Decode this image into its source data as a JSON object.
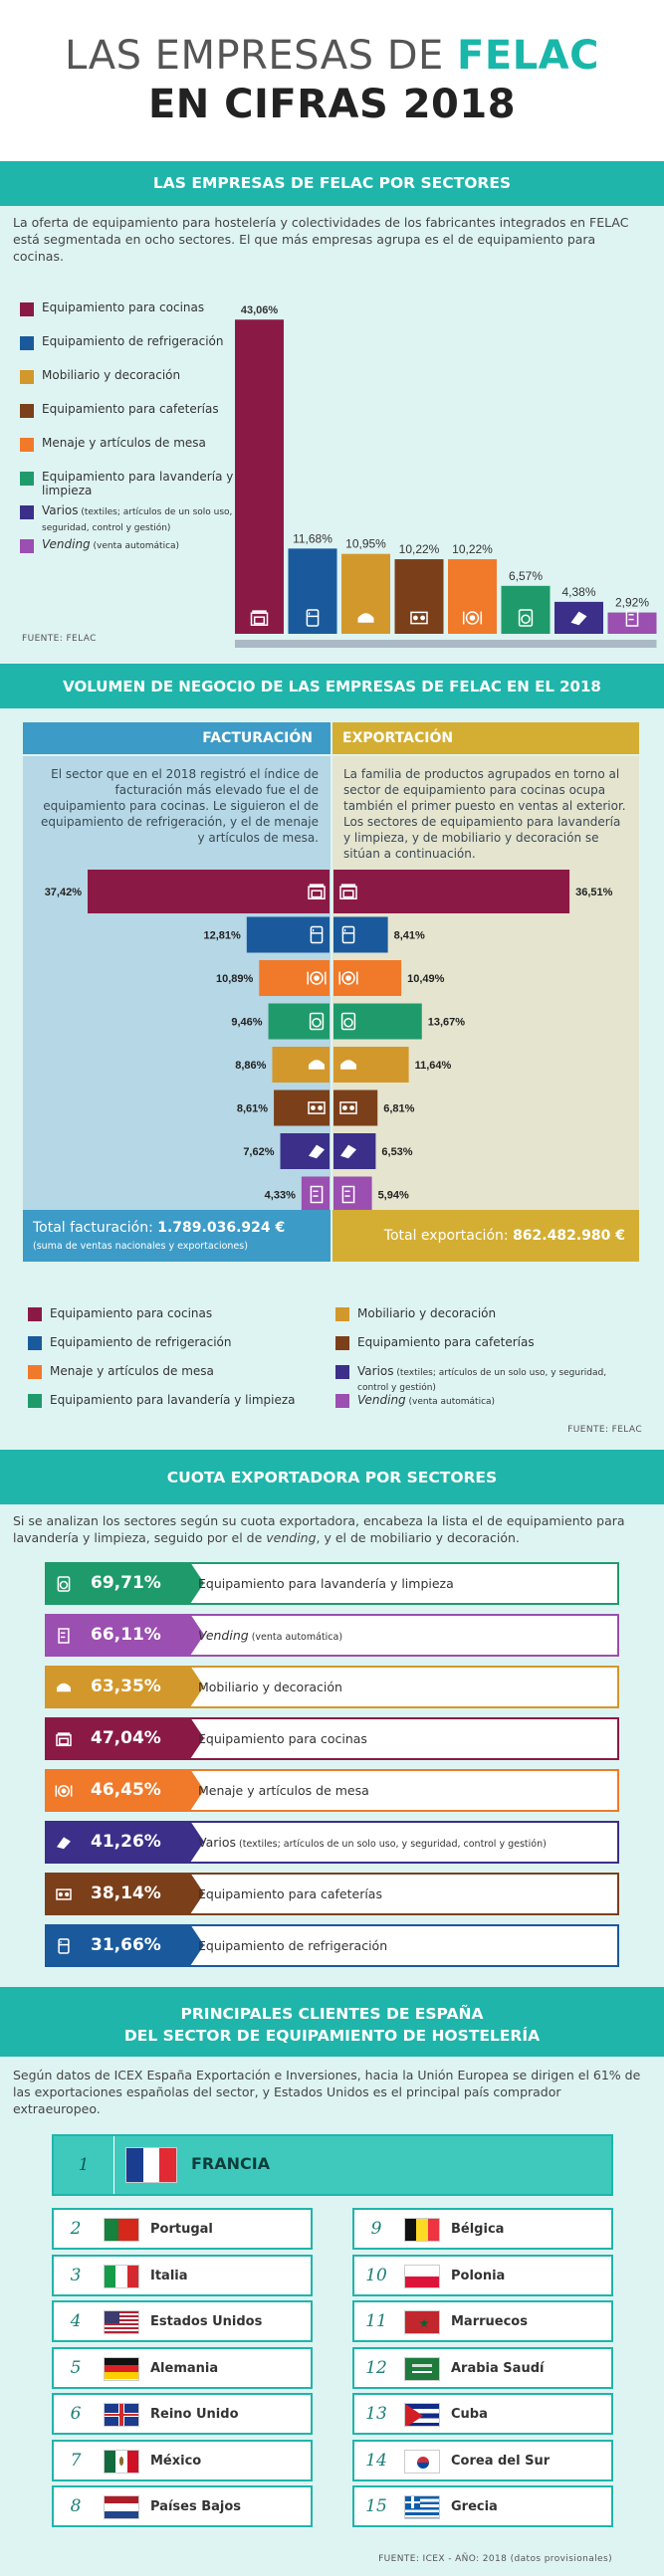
{
  "header": {
    "title_part1": "LAS EMPRESAS DE ",
    "title_brand": "FELAC",
    "title_line2": "EN CIFRAS 2018"
  },
  "section1": {
    "band_title": "LAS EMPRESAS DE FELAC POR SECTORES",
    "intro": "La oferta de equipamiento para hostelería y colectividades de los fabricantes integrados en FELAC está segmentada en ocho sectores. El que más empresas agrupa es el de equipamiento para cocinas.",
    "legend": [
      {
        "label": "Equipamiento para cocinas",
        "small": "",
        "color": "#8a1a45"
      },
      {
        "label": "Equipamiento de refrigeración",
        "small": "",
        "color": "#1a5a9c"
      },
      {
        "label": "Mobiliario y decoración",
        "small": "",
        "color": "#d3982b"
      },
      {
        "label": "Equipamiento para cafeterías",
        "small": "",
        "color": "#7b3f1a"
      },
      {
        "label": "Menaje y artículos de mesa",
        "small": "",
        "color": "#f07a2a"
      },
      {
        "label": "Equipamiento para lavandería y limpieza",
        "small": "",
        "color": "#1f9b6b"
      },
      {
        "label": "Varios",
        "small": " (textiles; artículos de un solo uso, y seguridad, control y gestión)",
        "color": "#3b2f8a"
      },
      {
        "label": "Vending",
        "small": " (venta automática)",
        "color": "#9b4fb0"
      }
    ],
    "source": "FUENTE: FELAC",
    "chart_data": {
      "type": "bar",
      "categories": [
        "Equipamiento para cocinas",
        "Equipamiento de refrigeración",
        "Mobiliario y decoración",
        "Equipamiento para cafeterías",
        "Menaje y artículos de mesa",
        "Equipamiento para lavandería y limpieza",
        "Varios",
        "Vending"
      ],
      "values": [
        43.06,
        11.68,
        10.95,
        10.22,
        10.22,
        6.57,
        4.38,
        2.92
      ],
      "labels": [
        "43,06%",
        "11,68%",
        "10,95%",
        "10,22%",
        "10,22%",
        "6,57%",
        "4,38%",
        "2,92%"
      ],
      "colors": [
        "#8a1a45",
        "#1a5a9c",
        "#d3982b",
        "#7b3f1a",
        "#f07a2a",
        "#1f9b6b",
        "#3b2f8a",
        "#9b4fb0"
      ],
      "icons": [
        "oven-icon",
        "fridge-icon",
        "furniture-icon",
        "coffee-machine-icon",
        "tableware-icon",
        "washing-machine-icon",
        "textiles-icon",
        "vending-icon"
      ],
      "ylim": [
        0,
        45
      ]
    }
  },
  "section2": {
    "band_title": "VOLUMEN DE NEGOCIO DE LAS EMPRESAS DE FELAC EN EL 2018",
    "col_left": "FACTURACIÓN",
    "col_right": "EXPORTACIÓN",
    "text_left": "El sector que en el 2018 registró el índice de facturación más elevado fue el de equipamiento para cocinas. Le siguieron el de equipamiento de refrigeración, y el de menaje y artículos de mesa.",
    "text_right": "La familia de productos agrupados en torno al sector de equipamiento para cocinas ocupa también el primer puesto en ventas al exterior. Los sectores de equipamiento para lavandería y limpieza, y de mobiliario y decoración se sitúan a continuación.",
    "total_left_label": "Total facturación: ",
    "total_left_value": "1.789.036.924 €",
    "total_left_note": "(suma de ventas nacionales y exportaciones)",
    "total_right_label": "Total exportación: ",
    "total_right_value": "862.482.980 €",
    "legend": [
      {
        "label": "Equipamiento para cocinas",
        "small": "",
        "color": "#8a1a45"
      },
      {
        "label": "Mobiliario y decoración",
        "small": "",
        "color": "#d3982b"
      },
      {
        "label": "Equipamiento de refrigeración",
        "small": "",
        "color": "#1a5a9c"
      },
      {
        "label": "Equipamiento para cafeterías",
        "small": "",
        "color": "#7b3f1a"
      },
      {
        "label": "Menaje y artículos de mesa",
        "small": "",
        "color": "#f07a2a"
      },
      {
        "label": "Varios",
        "small": " (textiles; artículos de un solo uso, y seguridad, control y gestión)",
        "color": "#3b2f8a"
      },
      {
        "label": "Equipamiento para lavandería y limpieza",
        "small": "",
        "color": "#1f9b6b"
      },
      {
        "label": "Vending",
        "small": " (venta automática)",
        "color": "#9b4fb0"
      }
    ],
    "source": "FUENTE: FELAC",
    "chart_data": {
      "type": "bar",
      "rows": [
        {
          "facturacion": 37.42,
          "f_label": "37,42%",
          "f_color": "#8a1a45",
          "f_icon": "oven-icon",
          "exportacion": 36.51,
          "e_label": "36,51%",
          "e_color": "#8a1a45",
          "e_icon": "oven-icon"
        },
        {
          "facturacion": 12.81,
          "f_label": "12,81%",
          "f_color": "#1a5a9c",
          "f_icon": "fridge-icon",
          "exportacion": 8.41,
          "e_label": "8,41%",
          "e_color": "#1a5a9c",
          "e_icon": "fridge-icon"
        },
        {
          "facturacion": 10.89,
          "f_label": "10,89%",
          "f_color": "#f07a2a",
          "f_icon": "tableware-icon",
          "exportacion": 10.49,
          "e_label": "10,49%",
          "e_color": "#f07a2a",
          "e_icon": "tableware-icon"
        },
        {
          "facturacion": 9.46,
          "f_label": "9,46%",
          "f_color": "#1f9b6b",
          "f_icon": "washing-machine-icon",
          "exportacion": 13.67,
          "e_label": "13,67%",
          "e_color": "#1f9b6b",
          "e_icon": "washing-machine-icon"
        },
        {
          "facturacion": 8.86,
          "f_label": "8,86%",
          "f_color": "#d3982b",
          "f_icon": "furniture-icon",
          "exportacion": 11.64,
          "e_label": "11,64%",
          "e_color": "#d3982b",
          "e_icon": "furniture-icon"
        },
        {
          "facturacion": 8.61,
          "f_label": "8,61%",
          "f_color": "#7b3f1a",
          "f_icon": "coffee-machine-icon",
          "exportacion": 6.81,
          "e_label": "6,81%",
          "e_color": "#7b3f1a",
          "e_icon": "coffee-machine-icon"
        },
        {
          "facturacion": 7.62,
          "f_label": "7,62%",
          "f_color": "#3b2f8a",
          "f_icon": "textiles-icon",
          "exportacion": 6.53,
          "e_label": "6,53%",
          "e_color": "#3b2f8a",
          "e_icon": "textiles-icon"
        },
        {
          "facturacion": 4.33,
          "f_label": "4,33%",
          "f_color": "#9b4fb0",
          "f_icon": "vending-icon",
          "exportacion": 5.94,
          "e_label": "5,94%",
          "e_color": "#9b4fb0",
          "e_icon": "vending-icon"
        }
      ],
      "xlim": [
        0,
        40
      ]
    }
  },
  "section3": {
    "band_title": "CUOTA EXPORTADORA POR SECTORES",
    "intro_a": "Si se analizan los sectores según su cuota exportadora, encabeza la lista el de equipamiento para lavandería y limpieza, seguido por el de ",
    "intro_em": "vending",
    "intro_b": ", y el de mobiliario y decoración.",
    "chart_data": {
      "type": "bar",
      "items": [
        {
          "value": 69.71,
          "label": "69,71%",
          "name": "Equipamiento para lavandería y limpieza",
          "small": "",
          "color": "#1f9b6b",
          "icon": "washing-machine-icon"
        },
        {
          "value": 66.11,
          "label": "66,11%",
          "name": "Vending",
          "small": " (venta automática)",
          "color": "#9b4fb0",
          "icon": "vending-icon"
        },
        {
          "value": 63.35,
          "label": "63,35%",
          "name": "Mobiliario y decoración",
          "small": "",
          "color": "#d3982b",
          "icon": "furniture-icon"
        },
        {
          "value": 47.04,
          "label": "47,04%",
          "name": "Equipamiento para cocinas",
          "small": "",
          "color": "#8a1a45",
          "icon": "oven-icon"
        },
        {
          "value": 46.45,
          "label": "46,45%",
          "name": "Menaje y artículos de mesa",
          "small": "",
          "color": "#f07a2a",
          "icon": "tableware-icon"
        },
        {
          "value": 41.26,
          "label": "41,26%",
          "name": "Varios",
          "small": " (textiles; artículos de un solo uso, y seguridad, control y gestión)",
          "color": "#3b2f8a",
          "icon": "textiles-icon"
        },
        {
          "value": 38.14,
          "label": "38,14%",
          "name": "Equipamiento para cafeterías",
          "small": "",
          "color": "#7b3f1a",
          "icon": "coffee-machine-icon"
        },
        {
          "value": 31.66,
          "label": "31,66%",
          "name": "Equipamiento de refrigeración",
          "small": "",
          "color": "#1a5a9c",
          "icon": "fridge-icon"
        }
      ]
    }
  },
  "section4": {
    "band_title_1": "PRINCIPALES CLIENTES DE ESPAÑA",
    "band_title_2": "DEL SECTOR DE EQUIPAMIENTO DE HOSTELERÍA",
    "intro": "Según datos de ICEX España Exportación e Inversiones, hacia la Unión Europea se dirigen el 61% de las exportaciones españolas del sector, y Estados Unidos es el principal país comprador extraeuropeo.",
    "countries": [
      {
        "rank": "1",
        "name": "FRANCIA",
        "flag": "fr"
      },
      {
        "rank": "2",
        "name": "Portugal",
        "flag": "pt"
      },
      {
        "rank": "3",
        "name": "Italia",
        "flag": "it"
      },
      {
        "rank": "4",
        "name": "Estados Unidos",
        "flag": "us"
      },
      {
        "rank": "5",
        "name": "Alemania",
        "flag": "de"
      },
      {
        "rank": "6",
        "name": "Reino Unido",
        "flag": "gb"
      },
      {
        "rank": "7",
        "name": "México",
        "flag": "mx"
      },
      {
        "rank": "8",
        "name": "Países Bajos",
        "flag": "nl"
      },
      {
        "rank": "9",
        "name": "Bélgica",
        "flag": "be"
      },
      {
        "rank": "10",
        "name": "Polonia",
        "flag": "pl"
      },
      {
        "rank": "11",
        "name": "Marruecos",
        "flag": "ma"
      },
      {
        "rank": "12",
        "name": "Arabia Saudí",
        "flag": "sa"
      },
      {
        "rank": "13",
        "name": "Cuba",
        "flag": "cu"
      },
      {
        "rank": "14",
        "name": "Corea del Sur",
        "flag": "kr"
      },
      {
        "rank": "15",
        "name": "Grecia",
        "flag": "gr"
      }
    ],
    "source": "FUENTE: ICEX - AÑO: 2018 (datos provisionales)"
  }
}
